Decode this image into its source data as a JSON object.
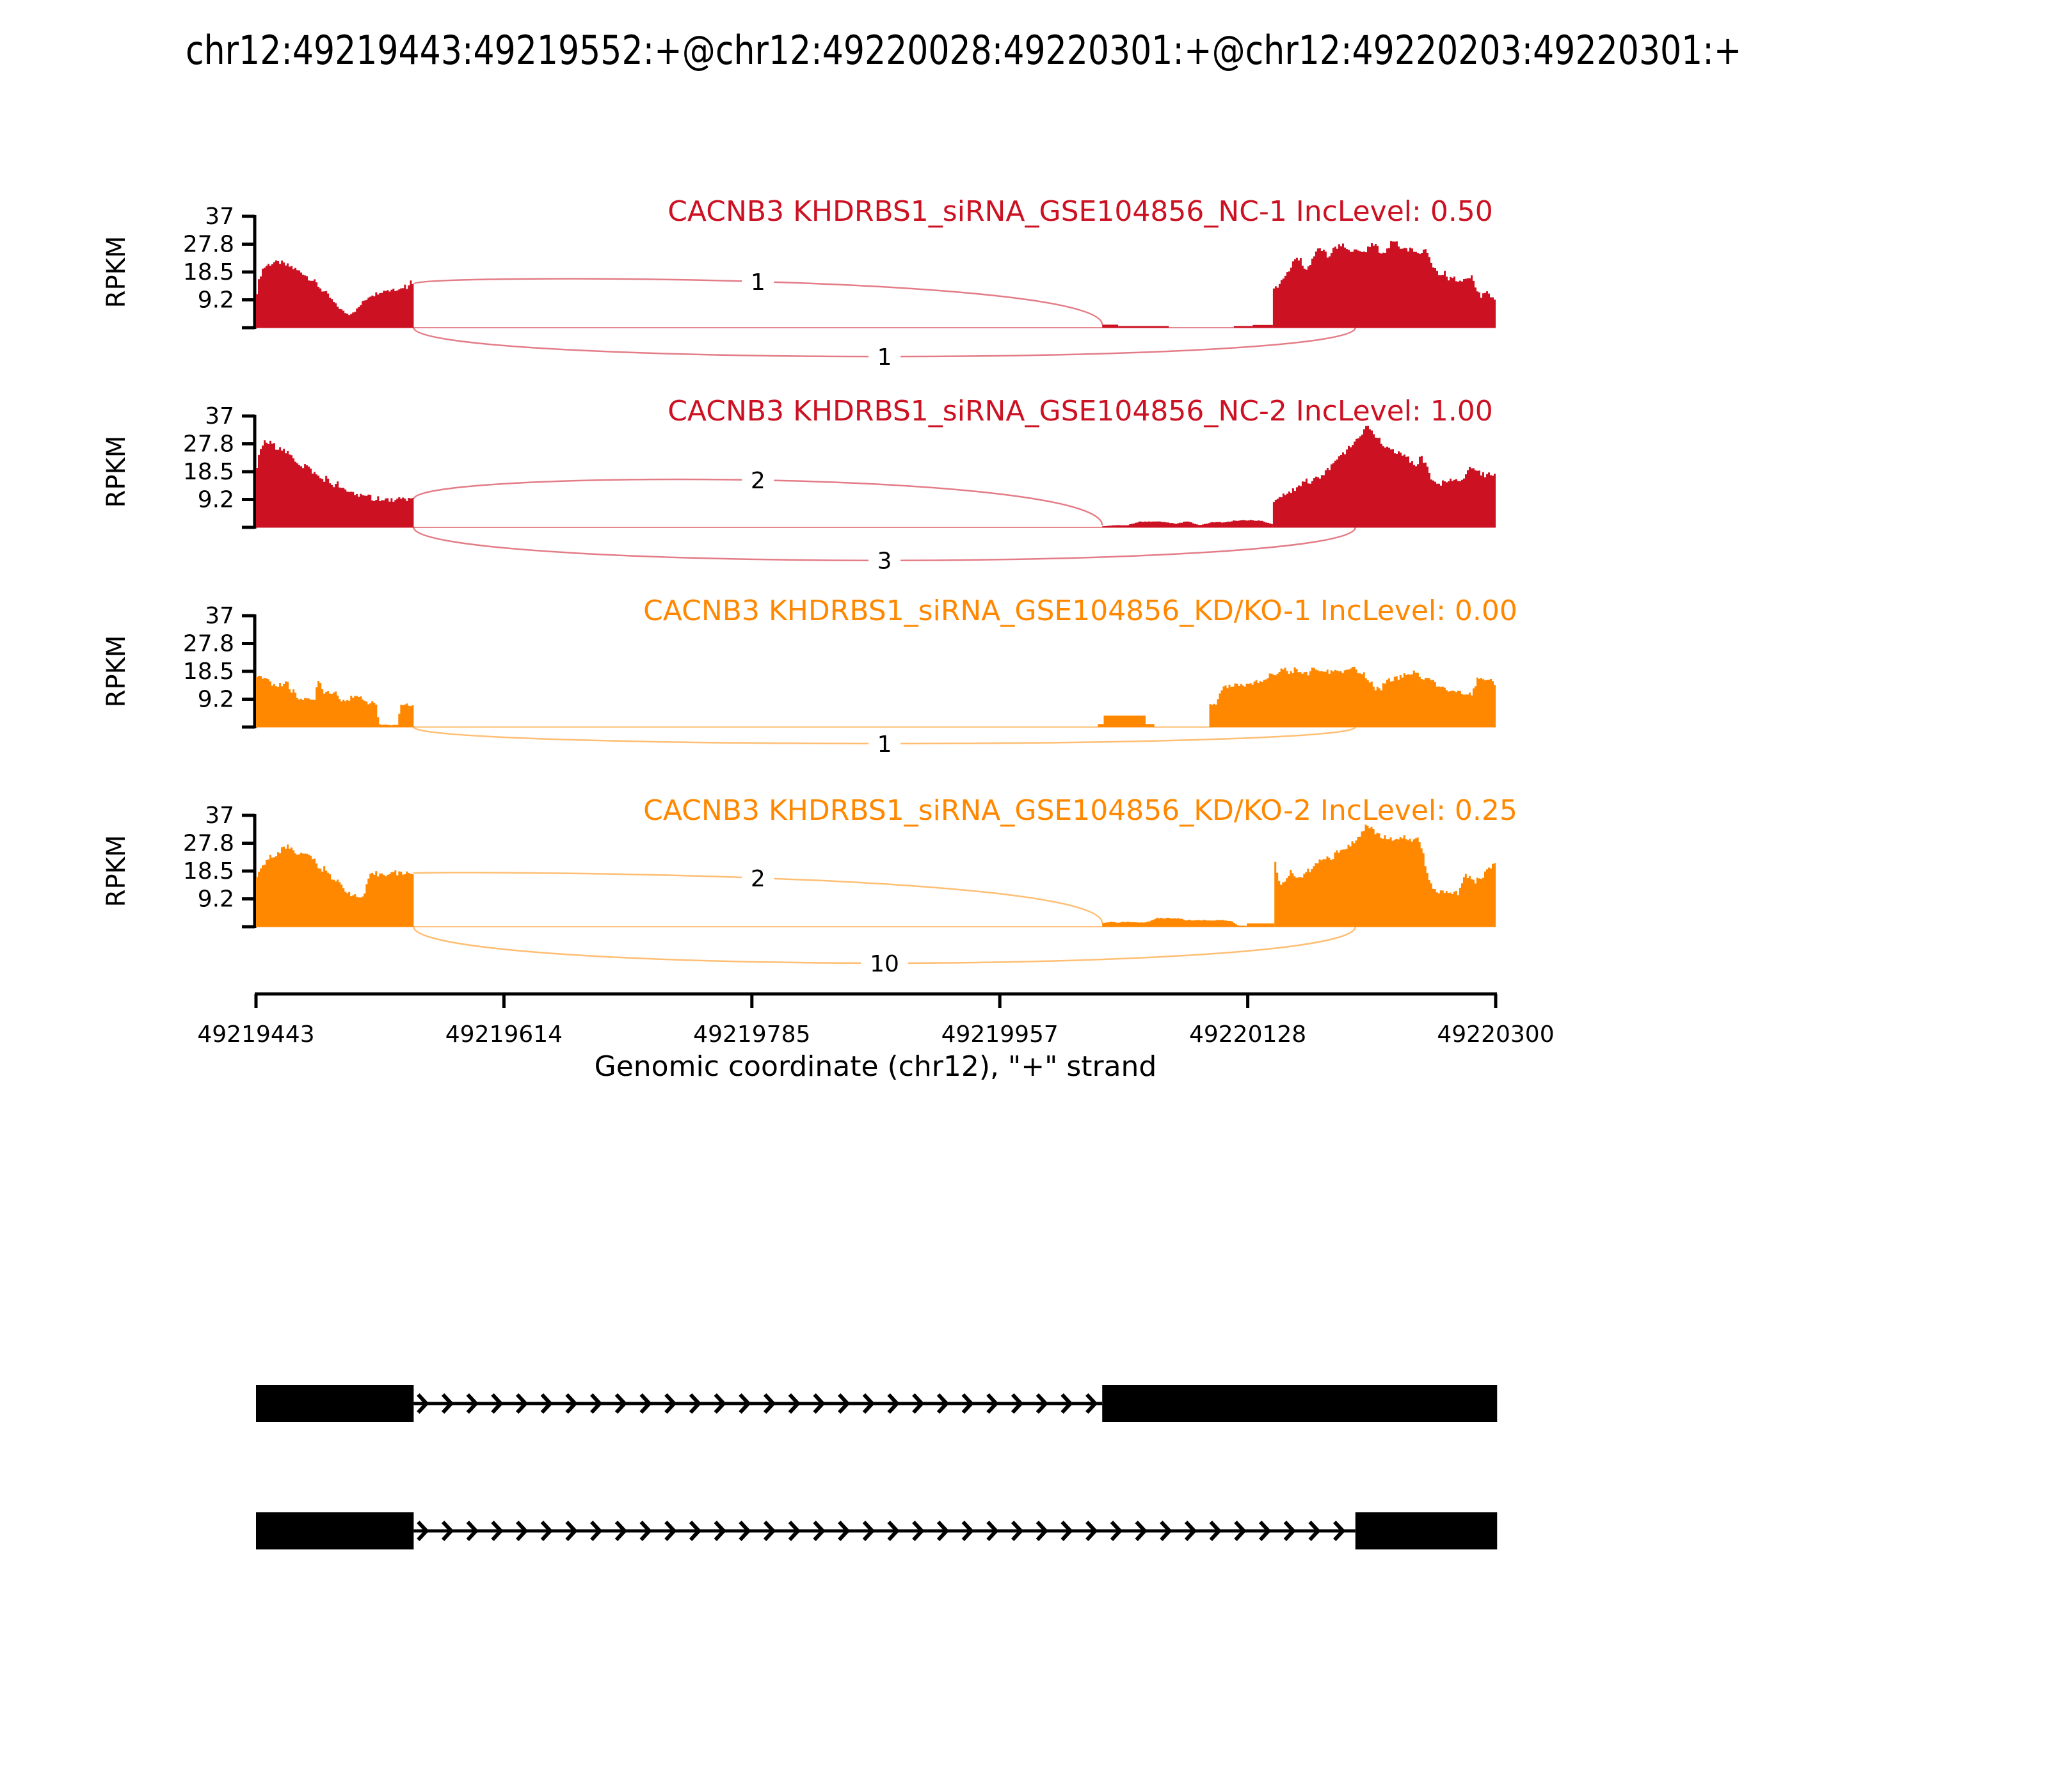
{
  "figure_title": "chr12:49219443:49219552:+@chr12:49220028:49220301:+@chr12:49220203:49220301:+",
  "axis": {
    "xlabel": "Genomic coordinate (chr12), \"+\" strand",
    "xticks": [
      "49219443",
      "49219614",
      "49219785",
      "49219957",
      "49220128",
      "49220300"
    ],
    "x_start_bp": 49219443,
    "x_end_bp": 49220300,
    "ylabel": "RPKM",
    "yticks": [
      "9.2",
      "18.5",
      "27.8",
      "37"
    ],
    "ytick_values": [
      9.25,
      18.5,
      27.75,
      37
    ],
    "ymax": 37
  },
  "chart_data": {
    "type": "area",
    "description": "rMATS sashimi plot, RNA-seq read coverage (RPKM) with junction read-count arcs for 4 samples",
    "tracks": [
      {
        "label": "CACNB3 KHDRBS1_siRNA_GSE104856_NC-1 IncLevel: 0.50",
        "color": "#CC1122",
        "inc_level": "0.50",
        "regions": [
          {
            "start": 49219443,
            "end": 49219552,
            "values": [
              12,
              17,
              19.5,
              20.5,
              21,
              21.3,
              21.7,
              21.4,
              21.8,
              21.2,
              20.8,
              20.5,
              20.2,
              19.6,
              19,
              18.6,
              18.2,
              17.4,
              16.6,
              16,
              15.2,
              14.4,
              13.2,
              12.2,
              11.4,
              10.4,
              9.2,
              8,
              7,
              6.2,
              5.4,
              4.8,
              4.4,
              5,
              5.6,
              6.4,
              7.6,
              8.8,
              9.6,
              10.6,
              11.2,
              11,
              11.8,
              12.4,
              12.1,
              12.9,
              12.3,
              13.1,
              12.7,
              13.5,
              12.9,
              14.2,
              13.4,
              15.6,
              14.6
            ]
          },
          {
            "start": 49220028,
            "end": 49220039,
            "values": [
              1.0
            ]
          },
          {
            "start": 49220039,
            "end": 49220074,
            "values": [
              0.55
            ]
          },
          {
            "start": 49220119,
            "end": 49220132,
            "values": [
              0.55
            ]
          },
          {
            "start": 49220132,
            "end": 49220146,
            "values": [
              0.9
            ]
          },
          {
            "start": 49220146,
            "end": 49220300,
            "values": [
              12.5,
              14.5,
              16.5,
              18,
              21,
              24,
              22,
              19.5,
              21.5,
              24,
              26.5,
              25,
              23.5,
              26,
              27,
              28.5,
              26,
              25,
              26.5,
              24,
              25.5,
              27,
              28,
              25.5,
              24.5,
              27,
              29.5,
              28,
              26,
              25.5,
              27,
              25,
              24.5,
              25.5,
              22.5,
              20,
              17.5,
              18.5,
              16.5,
              17,
              15.5,
              16,
              15.5,
              16.5,
              13,
              10.5,
              12.5,
              11,
              9
            ]
          }
        ],
        "junctions": [
          {
            "from": 49219552,
            "to": 49220028,
            "count": 1,
            "apex_rpkm": 15.3,
            "y1_rpkm": 14.6,
            "y2_rpkm": 1.0
          },
          {
            "from": 49219552,
            "to": 49220203,
            "count": 1,
            "apex_rpkm": -9.6,
            "y1_rpkm": 0,
            "y2_rpkm": 0
          }
        ]
      },
      {
        "label": "CACNB3 KHDRBS1_siRNA_GSE104856_NC-2 IncLevel: 1.00",
        "color": "#CC1122",
        "inc_level": "1.00",
        "regions": [
          {
            "start": 49219443,
            "end": 49219552,
            "values": [
              20,
              25,
              27.5,
              28.5,
              27.8,
              28.2,
              27.2,
              26.4,
              27,
              25.8,
              25,
              24.2,
              23.4,
              22.6,
              21.8,
              21,
              20.3,
              21,
              19.6,
              18.8,
              18,
              17.2,
              16.4,
              15.7,
              16.6,
              15,
              14.3,
              13.7,
              14.6,
              13.1,
              12.5,
              12,
              11.5,
              12.4,
              11,
              10.6,
              11.4,
              10.2,
              9.8,
              10.8,
              9.5,
              9.2,
              10,
              9,
              8.8,
              9.6,
              8.9,
              9.3,
              8.7,
              9.5,
              9.1,
              9.8,
              9.3,
              9.6,
              9.4
            ]
          },
          {
            "start": 49220028,
            "end": 49220146,
            "values": [
              0.4,
              0.7,
              0.7,
              1.9,
              1.9,
              1.9,
              1.2,
              2.0,
              0.7,
              1.7,
              1.7,
              2.3,
              2.3,
              2.3,
              1.1
            ]
          },
          {
            "start": 49220146,
            "end": 49220300,
            "values": [
              8.5,
              9.5,
              10.5,
              11.5,
              12.5,
              13,
              14,
              15.5,
              15,
              16,
              17,
              18,
              19.5,
              21,
              22.5,
              24,
              26,
              28,
              29.5,
              31,
              33.5,
              32.5,
              30.5,
              29,
              27,
              26,
              25.5,
              24.5,
              24,
              23,
              22,
              20.5,
              23.5,
              21,
              17,
              14.5,
              14,
              15.5,
              16,
              15.5,
              15,
              15.5,
              19,
              19.5,
              18.5,
              18,
              17.5,
              18,
              17.6
            ]
          }
        ],
        "junctions": [
          {
            "from": 49219552,
            "to": 49220028,
            "count": 2,
            "apex_rpkm": 15.7,
            "y1_rpkm": 9.4,
            "y2_rpkm": 0.7
          },
          {
            "from": 49219552,
            "to": 49220203,
            "count": 3,
            "apex_rpkm": -11.0,
            "y1_rpkm": 0,
            "y2_rpkm": 0
          }
        ]
      },
      {
        "label": "CACNB3 KHDRBS1_siRNA_GSE104856_KD/KO-1 IncLevel: 0.00",
        "color": "#FF8800",
        "inc_level": "0.00",
        "regions": [
          {
            "start": 49219443,
            "end": 49219552,
            "values": [
              16.3,
              16.3,
              16.4,
              16.3,
              16.2,
              13.9,
              13.8,
              13.8,
              14,
              15.1,
              15,
              12.1,
              11.9,
              9.8,
              9.7,
              9.6,
              9.7,
              8.9,
              8.6,
              9.2,
              16.5,
              14,
              11.8,
              11.7,
              11.8,
              11.6,
              11.7,
              9.3,
              9.1,
              9.2,
              9,
              9.9,
              9.8,
              9.7,
              9.9,
              9.6,
              8.2,
              8,
              8.1,
              7.9,
              1,
              0.7,
              0.8,
              0.7,
              0.6,
              0.8,
              0.7,
              7.2,
              7.4,
              7.3,
              7.5,
              7.4
            ]
          },
          {
            "start": 49220025,
            "end": 49220029,
            "values": [
              1.0
            ]
          },
          {
            "start": 49220029,
            "end": 49220058,
            "values": [
              3.8
            ]
          },
          {
            "start": 49220058,
            "end": 49220064,
            "values": [
              1.0
            ]
          },
          {
            "start": 49220102,
            "end": 49220300,
            "values": [
              7.6,
              7.6,
              12.2,
              13.7,
              13.7,
              13.6,
              13.8,
              13.7,
              15,
              15.2,
              16.8,
              17,
              18.8,
              19.2,
              18,
              19.5,
              18.5,
              17.5,
              19,
              19.5,
              18,
              18.5,
              19,
              18,
              18.5,
              20,
              18,
              17.5,
              15.5,
              12.6,
              12.8,
              15.5,
              15.8,
              16.5,
              17,
              17.5,
              18,
              17,
              16,
              15.5,
              13.5,
              13,
              12.5,
              12,
              11.8,
              10.5,
              11,
              15.8,
              16.5,
              16,
              14
            ]
          }
        ],
        "junctions": [
          {
            "from": 49219552,
            "to": 49220203,
            "count": 1,
            "apex_rpkm": -5.5,
            "y1_rpkm": 0,
            "y2_rpkm": 0
          }
        ]
      },
      {
        "label": "CACNB3 KHDRBS1_siRNA_GSE104856_KD/KO-2 IncLevel: 0.25",
        "color": "#FF8800",
        "inc_level": "0.25",
        "regions": [
          {
            "start": 49219443,
            "end": 49219552,
            "values": [
              16,
              18.5,
              20.5,
              22,
              22.8,
              23.4,
              24.1,
              24.8,
              25.6,
              26.2,
              26.8,
              26.3,
              25.7,
              24.6,
              24.2,
              24,
              23.8,
              24.1,
              23.6,
              21.5,
              19.5,
              18.7,
              19.6,
              18.9,
              17.2,
              16,
              15.1,
              14.4,
              13.2,
              12.4,
              11.5,
              10.8,
              10.2,
              9.8,
              9.6,
              10.4,
              13.6,
              16.8,
              17.4,
              17.6,
              17.3,
              17.8,
              17.5,
              18,
              17.7,
              18.2,
              17.8,
              17.4,
              18.1,
              17.7,
              18.3,
              17.9
            ]
          },
          {
            "start": 49220028,
            "end": 49220128,
            "values": [
              1.3,
              1.6,
              1.4,
              1.7,
              1.5,
              1.4,
              1.6,
              2.8,
              2.9,
              2.8,
              2.9,
              2.2,
              2.1,
              2.2,
              2.1,
              2.2,
              2.1,
              2,
              0.4,
              0.3
            ]
          },
          {
            "start": 49220128,
            "end": 49220147,
            "values": [
              1.1
            ]
          },
          {
            "start": 49220147,
            "end": 49220300,
            "values": [
              21,
              14,
              16,
              18.5,
              15.5,
              16.5,
              18,
              19,
              20.5,
              22,
              23.5,
              22.5,
              24.5,
              25,
              26,
              27.5,
              29,
              31.5,
              33.8,
              32.5,
              30.5,
              29.5,
              30,
              29,
              29.5,
              30,
              29,
              28.5,
              29,
              24,
              16,
              12,
              11.5,
              11.5,
              11.8,
              11.5,
              11,
              17,
              16.5,
              15,
              16,
              17.5,
              19.5,
              22
            ]
          }
        ],
        "junctions": [
          {
            "from": 49219552,
            "to": 49220028,
            "count": 2,
            "apex_rpkm": 16.2,
            "y1_rpkm": 17.8,
            "y2_rpkm": 1.2
          },
          {
            "from": 49219552,
            "to": 49220203,
            "count": 10,
            "apex_rpkm": -12.1,
            "y1_rpkm": 0,
            "y2_rpkm": 0
          }
        ]
      }
    ],
    "transcripts": [
      {
        "exons": [
          [
            49219443,
            49219552
          ],
          [
            49220028,
            49220301
          ]
        ]
      },
      {
        "exons": [
          [
            49219443,
            49219552
          ],
          [
            49220203,
            49220301
          ]
        ]
      }
    ]
  }
}
